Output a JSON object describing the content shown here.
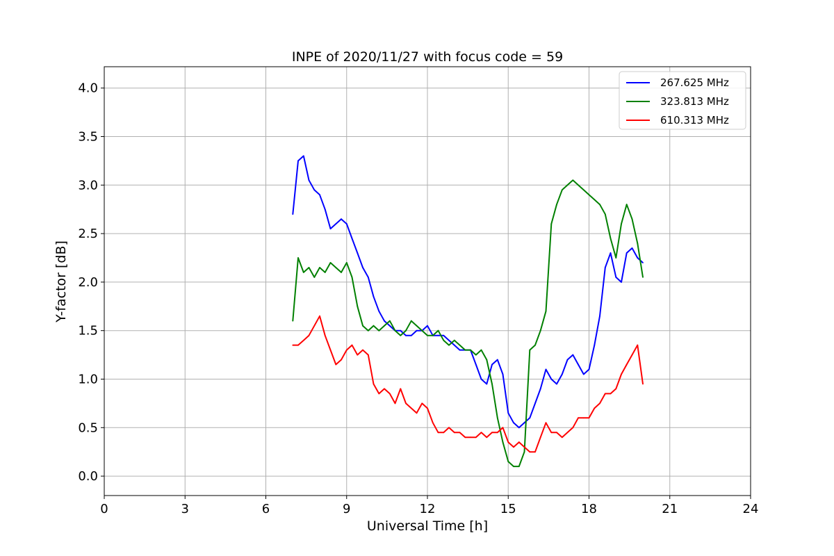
{
  "chart_data": {
    "type": "line",
    "title": "INPE of 2020/11/27 with focus code = 59",
    "xlabel": "Universal Time [h]",
    "ylabel": "Y-factor [dB]",
    "xlim": [
      0,
      24
    ],
    "ylim": [
      -0.2,
      4.22
    ],
    "xticks": [
      0,
      3,
      6,
      9,
      12,
      15,
      18,
      21,
      24
    ],
    "xtick_labels": [
      "0",
      "3",
      "6",
      "9",
      "12",
      "15",
      "18",
      "21",
      "24"
    ],
    "yticks": [
      0.0,
      0.5,
      1.0,
      1.5,
      2.0,
      2.5,
      3.0,
      3.5,
      4.0
    ],
    "ytick_labels": [
      "0.0",
      "0.5",
      "1.0",
      "1.5",
      "2.0",
      "2.5",
      "3.0",
      "3.5",
      "4.0"
    ],
    "grid": true,
    "legend_position": "top-right",
    "series": [
      {
        "name": "267.625 MHz",
        "color": "#0000ff",
        "x": [
          7.0,
          7.2,
          7.4,
          7.6,
          7.8,
          8.0,
          8.2,
          8.4,
          8.6,
          8.8,
          9.0,
          9.2,
          9.4,
          9.6,
          9.8,
          10.0,
          10.2,
          10.4,
          10.6,
          10.8,
          11.0,
          11.2,
          11.4,
          11.6,
          11.8,
          12.0,
          12.2,
          12.4,
          12.6,
          12.8,
          13.0,
          13.2,
          13.4,
          13.6,
          13.8,
          14.0,
          14.2,
          14.4,
          14.6,
          14.8,
          15.0,
          15.2,
          15.4,
          15.6,
          15.8,
          16.0,
          16.2,
          16.4,
          16.6,
          16.8,
          17.0,
          17.2,
          17.4,
          17.6,
          17.8,
          18.0,
          18.2,
          18.4,
          18.6,
          18.8,
          19.0,
          19.2,
          19.4,
          19.6,
          19.8,
          20.0
        ],
        "y": [
          2.7,
          3.25,
          3.3,
          3.05,
          2.95,
          2.9,
          2.75,
          2.55,
          2.6,
          2.65,
          2.6,
          2.45,
          2.3,
          2.15,
          2.05,
          1.85,
          1.7,
          1.6,
          1.55,
          1.5,
          1.5,
          1.45,
          1.45,
          1.5,
          1.5,
          1.55,
          1.45,
          1.45,
          1.45,
          1.4,
          1.35,
          1.3,
          1.3,
          1.3,
          1.15,
          1.0,
          0.95,
          1.15,
          1.2,
          1.05,
          0.65,
          0.55,
          0.5,
          0.55,
          0.6,
          0.75,
          0.9,
          1.1,
          1.0,
          0.95,
          1.05,
          1.2,
          1.25,
          1.15,
          1.05,
          1.1,
          1.35,
          1.65,
          2.15,
          2.3,
          2.05,
          2.0,
          2.3,
          2.35,
          2.25,
          2.2
        ]
      },
      {
        "name": "323.813 MHz",
        "color": "#008000",
        "x": [
          7.0,
          7.2,
          7.4,
          7.6,
          7.8,
          8.0,
          8.2,
          8.4,
          8.6,
          8.8,
          9.0,
          9.2,
          9.4,
          9.6,
          9.8,
          10.0,
          10.2,
          10.4,
          10.6,
          10.8,
          11.0,
          11.2,
          11.4,
          11.6,
          11.8,
          12.0,
          12.2,
          12.4,
          12.6,
          12.8,
          13.0,
          13.2,
          13.4,
          13.6,
          13.8,
          14.0,
          14.2,
          14.4,
          14.6,
          14.8,
          15.0,
          15.2,
          15.4,
          15.6,
          15.8,
          16.0,
          16.2,
          16.4,
          16.6,
          16.8,
          17.0,
          17.2,
          17.4,
          17.6,
          17.8,
          18.0,
          18.2,
          18.4,
          18.6,
          18.8,
          19.0,
          19.2,
          19.4,
          19.6,
          19.8,
          20.0
        ],
        "y": [
          1.6,
          2.25,
          2.1,
          2.15,
          2.05,
          2.15,
          2.1,
          2.2,
          2.15,
          2.1,
          2.2,
          2.05,
          1.75,
          1.55,
          1.5,
          1.55,
          1.5,
          1.55,
          1.6,
          1.5,
          1.45,
          1.5,
          1.6,
          1.55,
          1.5,
          1.45,
          1.45,
          1.5,
          1.4,
          1.35,
          1.4,
          1.35,
          1.3,
          1.3,
          1.25,
          1.3,
          1.2,
          0.95,
          0.6,
          0.35,
          0.15,
          0.1,
          0.1,
          0.25,
          1.3,
          1.35,
          1.5,
          1.7,
          2.6,
          2.8,
          2.95,
          3.0,
          3.05,
          3.0,
          2.95,
          2.9,
          2.85,
          2.8,
          2.7,
          2.45,
          2.25,
          2.6,
          2.8,
          2.65,
          2.4,
          2.05
        ]
      },
      {
        "name": "610.313 MHz",
        "color": "#ff0000",
        "x": [
          7.0,
          7.2,
          7.4,
          7.6,
          7.8,
          8.0,
          8.2,
          8.4,
          8.6,
          8.8,
          9.0,
          9.2,
          9.4,
          9.6,
          9.8,
          10.0,
          10.2,
          10.4,
          10.6,
          10.8,
          11.0,
          11.2,
          11.4,
          11.6,
          11.8,
          12.0,
          12.2,
          12.4,
          12.6,
          12.8,
          13.0,
          13.2,
          13.4,
          13.6,
          13.8,
          14.0,
          14.2,
          14.4,
          14.6,
          14.8,
          15.0,
          15.2,
          15.4,
          15.6,
          15.8,
          16.0,
          16.2,
          16.4,
          16.6,
          16.8,
          17.0,
          17.2,
          17.4,
          17.6,
          17.8,
          18.0,
          18.2,
          18.4,
          18.6,
          18.8,
          19.0,
          19.2,
          19.4,
          19.6,
          19.8,
          20.0
        ],
        "y": [
          1.35,
          1.35,
          1.4,
          1.45,
          1.55,
          1.65,
          1.45,
          1.3,
          1.15,
          1.2,
          1.3,
          1.35,
          1.25,
          1.3,
          1.25,
          0.95,
          0.85,
          0.9,
          0.85,
          0.75,
          0.9,
          0.75,
          0.7,
          0.65,
          0.75,
          0.7,
          0.55,
          0.45,
          0.45,
          0.5,
          0.45,
          0.45,
          0.4,
          0.4,
          0.4,
          0.45,
          0.4,
          0.45,
          0.45,
          0.5,
          0.35,
          0.3,
          0.35,
          0.3,
          0.25,
          0.25,
          0.4,
          0.55,
          0.45,
          0.45,
          0.4,
          0.45,
          0.5,
          0.6,
          0.6,
          0.6,
          0.7,
          0.75,
          0.85,
          0.85,
          0.9,
          1.05,
          1.15,
          1.25,
          1.35,
          0.95
        ]
      }
    ]
  }
}
